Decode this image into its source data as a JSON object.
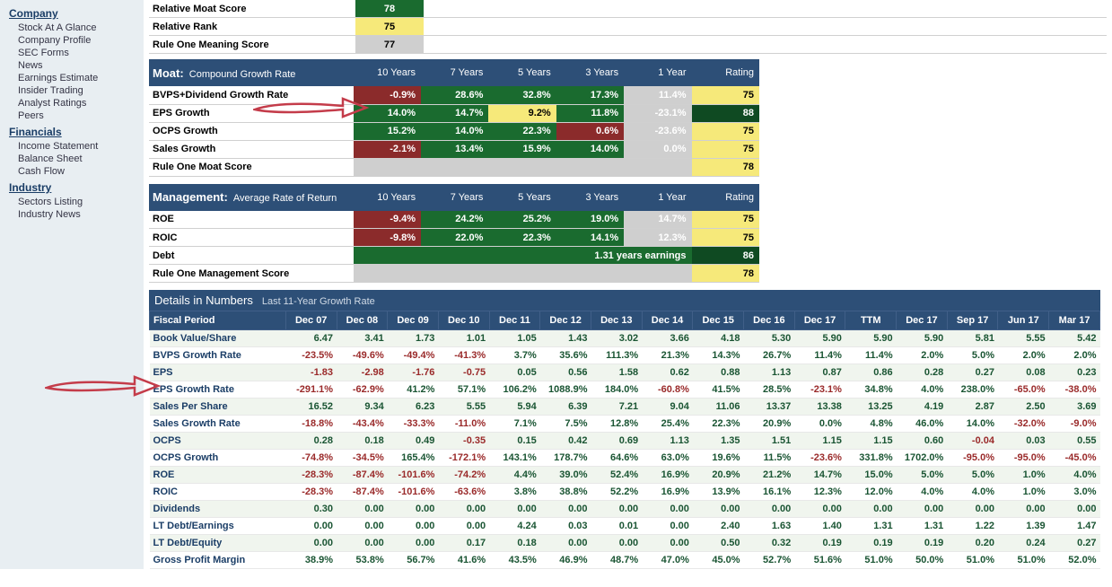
{
  "sidebar": {
    "sections": [
      {
        "title": "Company",
        "items": [
          "Stock At A Glance",
          "Company Profile",
          "SEC Forms",
          "News",
          "Earnings Estimate",
          "Insider Trading",
          "Analyst Ratings",
          "Peers"
        ]
      },
      {
        "title": "Financials",
        "items": [
          "Income Statement",
          "Balance Sheet",
          "Cash Flow"
        ]
      },
      {
        "title": "Industry",
        "items": [
          "Sectors Listing",
          "Industry News"
        ]
      }
    ]
  },
  "topRows": [
    {
      "label": "Relative Moat Score",
      "value": "78",
      "bg": "#1a6b2f",
      "fg": "#ffffff"
    },
    {
      "label": "Relative Rank",
      "value": "75",
      "bg": "#f6e97a",
      "fg": "#000000"
    },
    {
      "label": "Rule One Meaning Score",
      "value": "77",
      "bg": "#cfcfcf",
      "fg": "#000000"
    }
  ],
  "moat": {
    "title": "Moat:",
    "subtitle": "Compound Growth Rate",
    "cols": [
      "10 Years",
      "7 Years",
      "5 Years",
      "3 Years",
      "1 Year",
      "Rating"
    ],
    "rows": [
      {
        "label": "BVPS+Dividend Growth Rate",
        "vals": [
          {
            "t": "-0.9%",
            "bg": "#8b2b2b"
          },
          {
            "t": "28.6%",
            "bg": "#1a6b2f"
          },
          {
            "t": "32.8%",
            "bg": "#1a6b2f"
          },
          {
            "t": "17.3%",
            "bg": "#1a6b2f"
          },
          {
            "t": "11.4%",
            "bg": "#cfcfcf",
            "fg": "#ffffff"
          }
        ],
        "rating": {
          "t": "75",
          "bg": "#f6e97a",
          "fg": "#000000"
        }
      },
      {
        "label": "EPS Growth",
        "vals": [
          {
            "t": "14.0%",
            "bg": "#1a6b2f"
          },
          {
            "t": "14.7%",
            "bg": "#1a6b2f"
          },
          {
            "t": "9.2%",
            "bg": "#f6e97a",
            "fg": "#000000"
          },
          {
            "t": "11.8%",
            "bg": "#1a6b2f"
          },
          {
            "t": "-23.1%",
            "bg": "#cfcfcf",
            "fg": "#ffffff"
          }
        ],
        "rating": {
          "t": "88",
          "bg": "#0f4a22",
          "fg": "#ffffff"
        }
      },
      {
        "label": "OCPS Growth",
        "vals": [
          {
            "t": "15.2%",
            "bg": "#1a6b2f"
          },
          {
            "t": "14.0%",
            "bg": "#1a6b2f"
          },
          {
            "t": "22.3%",
            "bg": "#1a6b2f"
          },
          {
            "t": "0.6%",
            "bg": "#8b2b2b"
          },
          {
            "t": "-23.6%",
            "bg": "#cfcfcf",
            "fg": "#ffffff"
          }
        ],
        "rating": {
          "t": "75",
          "bg": "#f6e97a",
          "fg": "#000000"
        }
      },
      {
        "label": "Sales Growth",
        "vals": [
          {
            "t": "-2.1%",
            "bg": "#8b2b2b"
          },
          {
            "t": "13.4%",
            "bg": "#1a6b2f"
          },
          {
            "t": "15.9%",
            "bg": "#1a6b2f"
          },
          {
            "t": "14.0%",
            "bg": "#1a6b2f"
          },
          {
            "t": "0.0%",
            "bg": "#cfcfcf",
            "fg": "#ffffff"
          }
        ],
        "rating": {
          "t": "75",
          "bg": "#f6e97a",
          "fg": "#000000"
        }
      },
      {
        "label": "Rule One Moat Score",
        "vals": [
          {
            "t": "",
            "bg": "#cfcfcf",
            "colspan": 5
          }
        ],
        "rating": {
          "t": "78",
          "bg": "#f6e97a",
          "fg": "#000000"
        }
      }
    ]
  },
  "mgmt": {
    "title": "Management:",
    "subtitle": "Average Rate of Return",
    "cols": [
      "10 Years",
      "7 Years",
      "5 Years",
      "3 Years",
      "1 Year",
      "Rating"
    ],
    "rows": [
      {
        "label": "ROE",
        "vals": [
          {
            "t": "-9.4%",
            "bg": "#8b2b2b"
          },
          {
            "t": "24.2%",
            "bg": "#1a6b2f"
          },
          {
            "t": "25.2%",
            "bg": "#1a6b2f"
          },
          {
            "t": "19.0%",
            "bg": "#1a6b2f"
          },
          {
            "t": "14.7%",
            "bg": "#cfcfcf",
            "fg": "#ffffff"
          }
        ],
        "rating": {
          "t": "75",
          "bg": "#f6e97a",
          "fg": "#000000"
        }
      },
      {
        "label": "ROIC",
        "vals": [
          {
            "t": "-9.8%",
            "bg": "#8b2b2b"
          },
          {
            "t": "22.0%",
            "bg": "#1a6b2f"
          },
          {
            "t": "22.3%",
            "bg": "#1a6b2f"
          },
          {
            "t": "14.1%",
            "bg": "#1a6b2f"
          },
          {
            "t": "12.3%",
            "bg": "#cfcfcf",
            "fg": "#ffffff"
          }
        ],
        "rating": {
          "t": "75",
          "bg": "#f6e97a",
          "fg": "#000000"
        }
      },
      {
        "label": "Debt",
        "vals": [
          {
            "t": "1.31 years earnings",
            "bg": "#1a6b2f",
            "colspan": 5
          }
        ],
        "rating": {
          "t": "86",
          "bg": "#0f4a22",
          "fg": "#ffffff"
        }
      },
      {
        "label": "Rule One Management Score",
        "vals": [
          {
            "t": "",
            "bg": "#cfcfcf",
            "colspan": 5
          }
        ],
        "rating": {
          "t": "78",
          "bg": "#f6e97a",
          "fg": "#000000"
        }
      }
    ]
  },
  "details": {
    "title": "Details in Numbers",
    "subtitle": "Last 11-Year Growth Rate",
    "periods": [
      "Fiscal Period",
      "Dec 07",
      "Dec 08",
      "Dec 09",
      "Dec 10",
      "Dec 11",
      "Dec 12",
      "Dec 13",
      "Dec 14",
      "Dec 15",
      "Dec 16",
      "Dec 17",
      "TTM",
      "Dec 17",
      "Sep 17",
      "Jun 17",
      "Mar 17"
    ],
    "rows": [
      {
        "label": "Book Value/Share",
        "vals": [
          "6.47",
          "3.41",
          "1.73",
          "1.01",
          "1.05",
          "1.43",
          "3.02",
          "3.66",
          "4.18",
          "5.30",
          "5.90",
          "5.90",
          "5.90",
          "5.81",
          "5.55",
          "5.42"
        ]
      },
      {
        "label": "BVPS Growth Rate",
        "vals": [
          "-23.5%",
          "-49.6%",
          "-49.4%",
          "-41.3%",
          "3.7%",
          "35.6%",
          "111.3%",
          "21.3%",
          "14.3%",
          "26.7%",
          "11.4%",
          "11.4%",
          "2.0%",
          "5.0%",
          "2.0%",
          "2.0%"
        ]
      },
      {
        "label": "EPS",
        "vals": [
          "-1.83",
          "-2.98",
          "-1.76",
          "-0.75",
          "0.05",
          "0.56",
          "1.58",
          "0.62",
          "0.88",
          "1.13",
          "0.87",
          "0.86",
          "0.28",
          "0.27",
          "0.08",
          "0.23"
        ]
      },
      {
        "label": "EPS Growth Rate",
        "vals": [
          "-291.1%",
          "-62.9%",
          "41.2%",
          "57.1%",
          "106.2%",
          "1088.9%",
          "184.0%",
          "-60.8%",
          "41.5%",
          "28.5%",
          "-23.1%",
          "34.8%",
          "4.0%",
          "238.0%",
          "-65.0%",
          "-38.0%"
        ]
      },
      {
        "label": "Sales Per Share",
        "vals": [
          "16.52",
          "9.34",
          "6.23",
          "5.55",
          "5.94",
          "6.39",
          "7.21",
          "9.04",
          "11.06",
          "13.37",
          "13.38",
          "13.25",
          "4.19",
          "2.87",
          "2.50",
          "3.69"
        ]
      },
      {
        "label": "Sales Growth Rate",
        "vals": [
          "-18.8%",
          "-43.4%",
          "-33.3%",
          "-11.0%",
          "7.1%",
          "7.5%",
          "12.8%",
          "25.4%",
          "22.3%",
          "20.9%",
          "0.0%",
          "4.8%",
          "46.0%",
          "14.0%",
          "-32.0%",
          "-9.0%"
        ]
      },
      {
        "label": "OCPS",
        "vals": [
          "0.28",
          "0.18",
          "0.49",
          "-0.35",
          "0.15",
          "0.42",
          "0.69",
          "1.13",
          "1.35",
          "1.51",
          "1.15",
          "1.15",
          "0.60",
          "-0.04",
          "0.03",
          "0.55"
        ]
      },
      {
        "label": "OCPS Growth",
        "vals": [
          "-74.8%",
          "-34.5%",
          "165.4%",
          "-172.1%",
          "143.1%",
          "178.7%",
          "64.6%",
          "63.0%",
          "19.6%",
          "11.5%",
          "-23.6%",
          "331.8%",
          "1702.0%",
          "-95.0%",
          "-95.0%",
          "-45.0%"
        ]
      },
      {
        "label": "ROE",
        "vals": [
          "-28.3%",
          "-87.4%",
          "-101.6%",
          "-74.2%",
          "4.4%",
          "39.0%",
          "52.4%",
          "16.9%",
          "20.9%",
          "21.2%",
          "14.7%",
          "15.0%",
          "5.0%",
          "5.0%",
          "1.0%",
          "4.0%"
        ]
      },
      {
        "label": "ROIC",
        "vals": [
          "-28.3%",
          "-87.4%",
          "-101.6%",
          "-63.6%",
          "3.8%",
          "38.8%",
          "52.2%",
          "16.9%",
          "13.9%",
          "16.1%",
          "12.3%",
          "12.0%",
          "4.0%",
          "4.0%",
          "1.0%",
          "3.0%"
        ]
      },
      {
        "label": "Dividends",
        "vals": [
          "0.30",
          "0.00",
          "0.00",
          "0.00",
          "0.00",
          "0.00",
          "0.00",
          "0.00",
          "0.00",
          "0.00",
          "0.00",
          "0.00",
          "0.00",
          "0.00",
          "0.00",
          "0.00"
        ]
      },
      {
        "label": "LT Debt/Earnings",
        "vals": [
          "0.00",
          "0.00",
          "0.00",
          "0.00",
          "4.24",
          "0.03",
          "0.01",
          "0.00",
          "2.40",
          "1.63",
          "1.40",
          "1.31",
          "1.31",
          "1.22",
          "1.39",
          "1.47"
        ]
      },
      {
        "label": "LT Debt/Equity",
        "vals": [
          "0.00",
          "0.00",
          "0.00",
          "0.17",
          "0.18",
          "0.00",
          "0.00",
          "0.00",
          "0.50",
          "0.32",
          "0.19",
          "0.19",
          "0.19",
          "0.20",
          "0.24",
          "0.27"
        ]
      },
      {
        "label": "Gross Profit Margin",
        "vals": [
          "38.9%",
          "53.8%",
          "56.7%",
          "41.6%",
          "43.5%",
          "46.9%",
          "48.7%",
          "47.0%",
          "45.0%",
          "52.7%",
          "51.6%",
          "51.0%",
          "50.0%",
          "51.0%",
          "51.0%",
          "52.0%"
        ]
      }
    ]
  },
  "colors": {
    "headerBg": "#2d4f77",
    "green": "#1a6b2f",
    "darkGreen": "#0f4a22",
    "red": "#8b2b2b",
    "grey": "#cfcfcf",
    "yellow": "#f6e97a",
    "arrow": "#c43c4a"
  }
}
